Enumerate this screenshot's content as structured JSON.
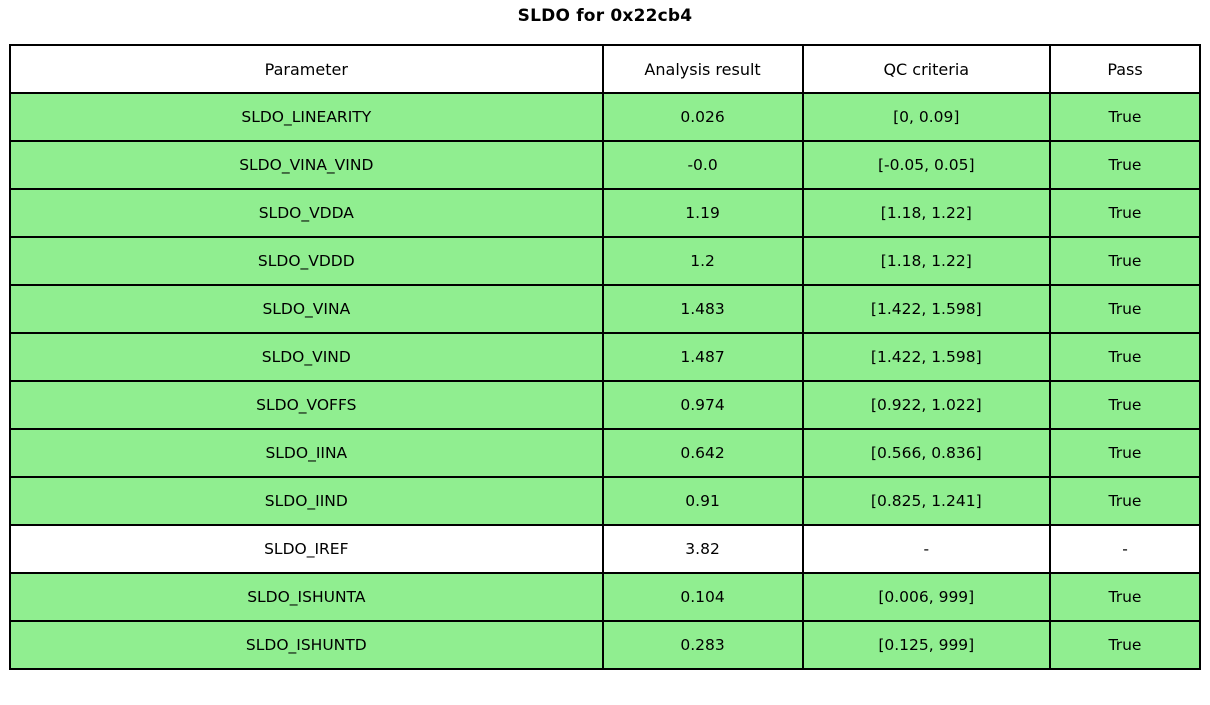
{
  "title": "SLDO for 0x22cb4",
  "colors": {
    "pass_row_background": "#90ee90",
    "neutral_row_background": "#ffffff",
    "border": "#000000",
    "text": "#000000"
  },
  "table": {
    "headers": [
      "Parameter",
      "Analysis result",
      "QC criteria",
      "Pass"
    ],
    "rows": [
      {
        "parameter": "SLDO_LINEARITY",
        "result": "0.026",
        "criteria": "[0, 0.09]",
        "pass": "True",
        "highlight": true
      },
      {
        "parameter": "SLDO_VINA_VIND",
        "result": "-0.0",
        "criteria": "[-0.05, 0.05]",
        "pass": "True",
        "highlight": true
      },
      {
        "parameter": "SLDO_VDDA",
        "result": "1.19",
        "criteria": "[1.18, 1.22]",
        "pass": "True",
        "highlight": true
      },
      {
        "parameter": "SLDO_VDDD",
        "result": "1.2",
        "criteria": "[1.18, 1.22]",
        "pass": "True",
        "highlight": true
      },
      {
        "parameter": "SLDO_VINA",
        "result": "1.483",
        "criteria": "[1.422, 1.598]",
        "pass": "True",
        "highlight": true
      },
      {
        "parameter": "SLDO_VIND",
        "result": "1.487",
        "criteria": "[1.422, 1.598]",
        "pass": "True",
        "highlight": true
      },
      {
        "parameter": "SLDO_VOFFS",
        "result": "0.974",
        "criteria": "[0.922, 1.022]",
        "pass": "True",
        "highlight": true
      },
      {
        "parameter": "SLDO_IINA",
        "result": "0.642",
        "criteria": "[0.566, 0.836]",
        "pass": "True",
        "highlight": true
      },
      {
        "parameter": "SLDO_IIND",
        "result": "0.91",
        "criteria": "[0.825, 1.241]",
        "pass": "True",
        "highlight": true
      },
      {
        "parameter": "SLDO_IREF",
        "result": "3.82",
        "criteria": "-",
        "pass": "-",
        "highlight": false
      },
      {
        "parameter": "SLDO_ISHUNTA",
        "result": "0.104",
        "criteria": "[0.006, 999]",
        "pass": "True",
        "highlight": true
      },
      {
        "parameter": "SLDO_ISHUNTD",
        "result": "0.283",
        "criteria": "[0.125, 999]",
        "pass": "True",
        "highlight": true
      }
    ]
  },
  "chart_data": {
    "type": "table",
    "title": "SLDO for 0x22cb4",
    "columns": [
      "Parameter",
      "Analysis result",
      "QC criteria",
      "Pass"
    ],
    "rows": [
      [
        "SLDO_LINEARITY",
        "0.026",
        "[0, 0.09]",
        "True"
      ],
      [
        "SLDO_VINA_VIND",
        "-0.0",
        "[-0.05, 0.05]",
        "True"
      ],
      [
        "SLDO_VDDA",
        "1.19",
        "[1.18, 1.22]",
        "True"
      ],
      [
        "SLDO_VDDD",
        "1.2",
        "[1.18, 1.22]",
        "True"
      ],
      [
        "SLDO_VINA",
        "1.483",
        "[1.422, 1.598]",
        "True"
      ],
      [
        "SLDO_VIND",
        "1.487",
        "[1.422, 1.598]",
        "True"
      ],
      [
        "SLDO_VOFFS",
        "0.974",
        "[0.922, 1.022]",
        "True"
      ],
      [
        "SLDO_IINA",
        "0.642",
        "[0.566, 0.836]",
        "True"
      ],
      [
        "SLDO_IIND",
        "0.91",
        "[0.825, 1.241]",
        "True"
      ],
      [
        "SLDO_IREF",
        "3.82",
        "-",
        "-"
      ],
      [
        "SLDO_ISHUNTA",
        "0.104",
        "[0.006, 999]",
        "True"
      ],
      [
        "SLDO_ISHUNTD",
        "0.283",
        "[0.125, 999]",
        "True"
      ]
    ],
    "row_highlight_color": "#90ee90",
    "neutral_rows": [
      "SLDO_IREF"
    ]
  }
}
